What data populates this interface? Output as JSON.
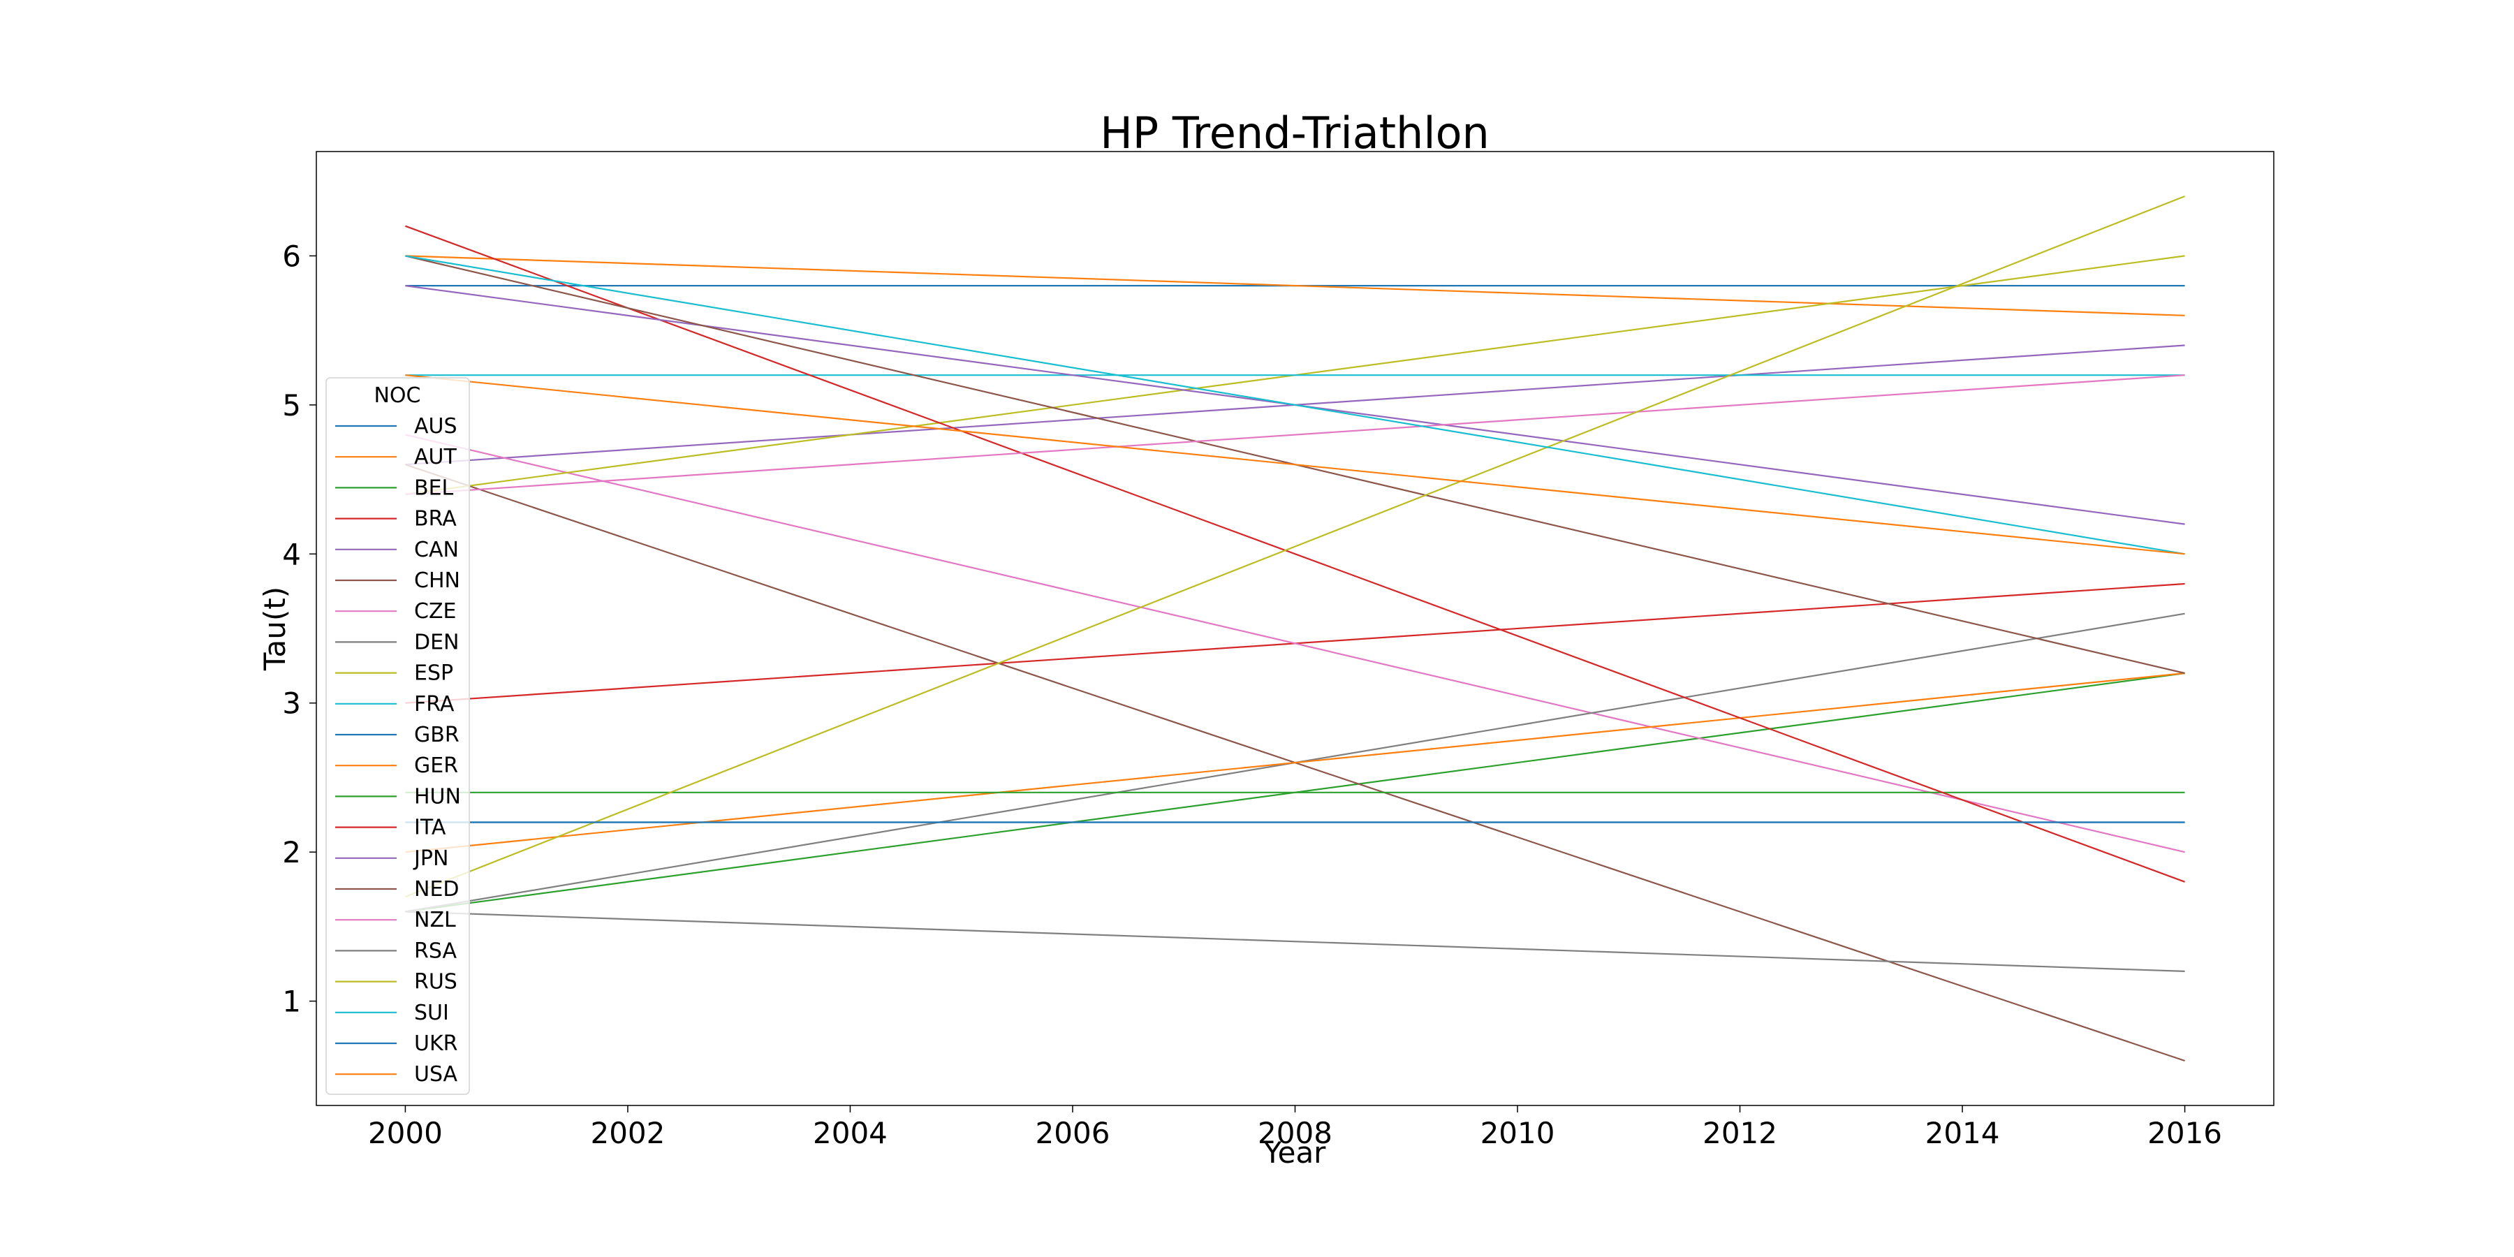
{
  "chart_data": {
    "type": "line",
    "title": "HP Trend-Triathlon",
    "xlabel": "Year",
    "ylabel": "Tau(t)",
    "xlim": [
      1999.2,
      2016.8
    ],
    "ylim": [
      0.3,
      6.7
    ],
    "x_ticks": [
      2000,
      2002,
      2004,
      2006,
      2008,
      2010,
      2012,
      2014,
      2016
    ],
    "y_ticks": [
      1,
      2,
      3,
      4,
      5,
      6
    ],
    "x_tick_labels": [
      "2000",
      "2002",
      "2004",
      "2006",
      "2008",
      "2010",
      "2012",
      "2014",
      "2016"
    ],
    "y_tick_labels": [
      "1",
      "2",
      "3",
      "4",
      "5",
      "6"
    ],
    "grid": false,
    "legend": {
      "title": "NOC",
      "placement": "center-left"
    },
    "x": [
      2000,
      2016
    ],
    "series": [
      {
        "name": "AUS",
        "color": "#1f77b4",
        "values": [
          5.8,
          5.8
        ]
      },
      {
        "name": "AUT",
        "color": "#ff7f0e",
        "values": [
          6.0,
          5.6
        ]
      },
      {
        "name": "BEL",
        "color": "#2ca02c",
        "values": [
          1.6,
          3.2
        ]
      },
      {
        "name": "BRA",
        "color": "#d62728",
        "values": [
          3.0,
          3.8
        ]
      },
      {
        "name": "CAN",
        "color": "#9467bd",
        "values": [
          4.6,
          5.4
        ]
      },
      {
        "name": "CHN",
        "color": "#8c564b",
        "values": [
          4.6,
          0.6
        ]
      },
      {
        "name": "CZE",
        "color": "#e377c2",
        "values": [
          4.8,
          2.0
        ]
      },
      {
        "name": "DEN",
        "color": "#7f7f7f",
        "values": [
          1.6,
          3.6
        ]
      },
      {
        "name": "ESP",
        "color": "#bcbd22",
        "values": [
          4.4,
          6.0
        ]
      },
      {
        "name": "FRA",
        "color": "#17becf",
        "values": [
          5.2,
          5.2
        ]
      },
      {
        "name": "GBR",
        "color": "#1f77b4",
        "values": [
          2.2,
          2.2
        ]
      },
      {
        "name": "GER",
        "color": "#ff7f0e",
        "values": [
          2.0,
          3.2
        ]
      },
      {
        "name": "HUN",
        "color": "#2ca02c",
        "values": [
          2.4,
          2.4
        ]
      },
      {
        "name": "ITA",
        "color": "#d62728",
        "values": [
          6.2,
          1.8
        ]
      },
      {
        "name": "JPN",
        "color": "#9467bd",
        "values": [
          5.8,
          4.2
        ]
      },
      {
        "name": "NED",
        "color": "#8c564b",
        "values": [
          6.0,
          3.2
        ]
      },
      {
        "name": "NZL",
        "color": "#e377c2",
        "values": [
          4.4,
          5.2
        ]
      },
      {
        "name": "RSA",
        "color": "#7f7f7f",
        "values": [
          1.6,
          1.2
        ]
      },
      {
        "name": "RUS",
        "color": "#bcbd22",
        "values": [
          1.7,
          6.4
        ]
      },
      {
        "name": "SUI",
        "color": "#17becf",
        "values": [
          6.0,
          4.0
        ]
      },
      {
        "name": "UKR",
        "color": "#1f77b4",
        "values": [
          2.2,
          2.2
        ]
      },
      {
        "name": "USA",
        "color": "#ff7f0e",
        "values": [
          5.2,
          4.0
        ]
      }
    ]
  }
}
